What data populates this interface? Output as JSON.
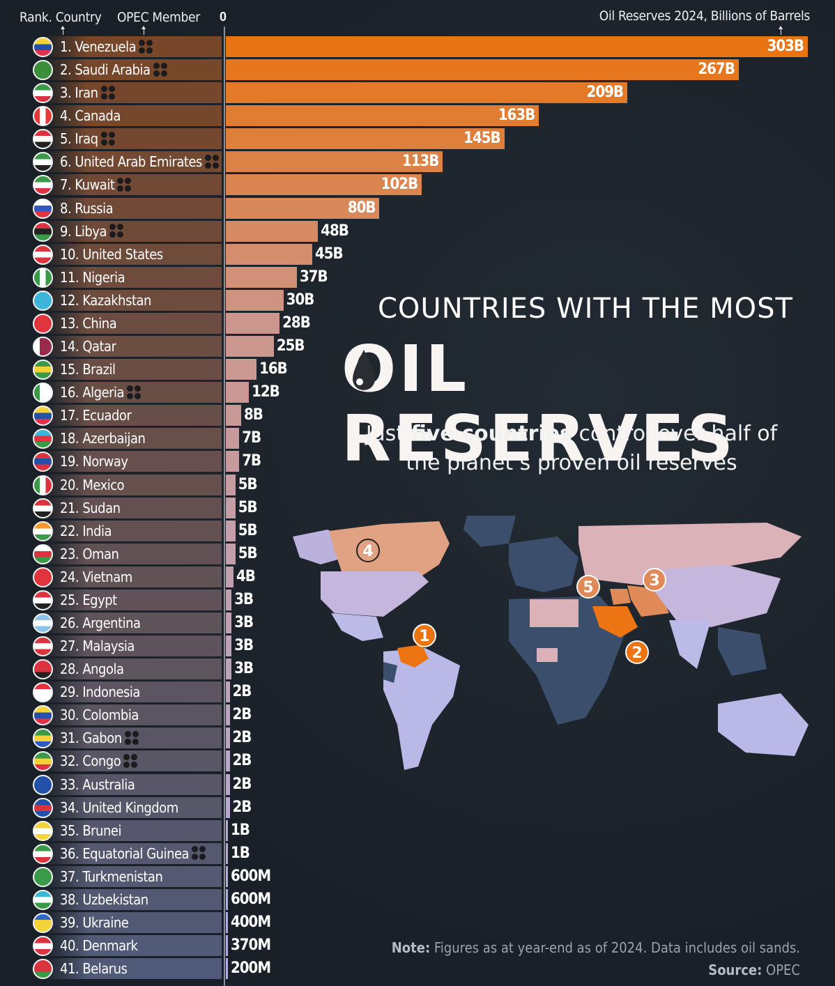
{
  "header": {
    "rank_country_label": "Rank. Country",
    "opec_label": "OPEC Member",
    "axis_zero": "0",
    "value_axis_label": "Oil Reserves 2024, Billions of Barrels"
  },
  "title": {
    "line1": "COUNTRIES WITH THE MOST",
    "line2": "OIL RESERVES",
    "subtitle_pre": "Just ",
    "subtitle_bold": "five countries",
    "subtitle_post": " control over half of the planet’s proven oil reserves"
  },
  "map": {
    "callouts": [
      {
        "rank": "1",
        "country": "Venezuela"
      },
      {
        "rank": "2",
        "country": "Saudi Arabia"
      },
      {
        "rank": "3",
        "country": "Iran"
      },
      {
        "rank": "4",
        "country": "Canada"
      },
      {
        "rank": "5",
        "country": "Iraq"
      }
    ],
    "colors": {
      "top": "#e8700f",
      "mid": "#e08a58",
      "high": "#d9b0b0",
      "low": "#b9b8e6",
      "none": "#3c4f6c",
      "ocean": "#1c232c"
    }
  },
  "footer": {
    "note_label": "Note:",
    "note_text": " Figures as at year-end as of 2024. Data includes oil sands.",
    "source_label": "Source:",
    "source_text": " OPEC"
  },
  "chart_data": {
    "type": "bar",
    "orientation": "horizontal",
    "title": "Countries with the Most Oil Reserves",
    "xlabel": "Oil Reserves 2024, Billions of Barrels",
    "ylabel": "Rank. Country",
    "categories": [
      "Venezuela",
      "Saudi Arabia",
      "Iran",
      "Canada",
      "Iraq",
      "United Arab Emirates",
      "Kuwait",
      "Russia",
      "Libya",
      "United States",
      "Nigeria",
      "Kazakhstan",
      "China",
      "Qatar",
      "Brazil",
      "Algeria",
      "Ecuador",
      "Azerbaijan",
      "Norway",
      "Mexico",
      "Sudan",
      "India",
      "Oman",
      "Vietnam",
      "Egypt",
      "Argentina",
      "Malaysia",
      "Angola",
      "Indonesia",
      "Colombia",
      "Gabon",
      "Congo",
      "Australia",
      "United Kingdom",
      "Brunei",
      "Equatorial Guinea",
      "Turkmenistan",
      "Uzbekistan",
      "Ukraine",
      "Denmark",
      "Belarus"
    ],
    "values": [
      303,
      267,
      209,
      163,
      145,
      113,
      102,
      80,
      48,
      45,
      37,
      30,
      28,
      25,
      16,
      12,
      8,
      7,
      7,
      5,
      5,
      5,
      5,
      4,
      3,
      3,
      3,
      3,
      2,
      2,
      2,
      2,
      2,
      2,
      1,
      1,
      0.6,
      0.6,
      0.4,
      0.37,
      0.2
    ],
    "value_labels": [
      "303B",
      "267B",
      "209B",
      "163B",
      "145B",
      "113B",
      "102B",
      "80B",
      "48B",
      "45B",
      "37B",
      "30B",
      "28B",
      "25B",
      "16B",
      "12B",
      "8B",
      "7B",
      "7B",
      "5B",
      "5B",
      "5B",
      "5B",
      "4B",
      "3B",
      "3B",
      "3B",
      "3B",
      "2B",
      "2B",
      "2B",
      "2B",
      "2B",
      "2B",
      "1B",
      "1B",
      "600M",
      "600M",
      "400M",
      "370M",
      "200M"
    ],
    "opec_member": [
      true,
      true,
      true,
      false,
      true,
      true,
      true,
      false,
      true,
      false,
      false,
      false,
      false,
      false,
      false,
      true,
      false,
      false,
      false,
      false,
      false,
      false,
      false,
      false,
      false,
      false,
      false,
      false,
      false,
      false,
      true,
      true,
      false,
      false,
      false,
      true,
      false,
      false,
      false,
      false,
      false
    ],
    "xlim": [
      0,
      303
    ],
    "grid": false,
    "legend": "none"
  },
  "rows": [
    {
      "label": "1. Venezuela",
      "value": "303B",
      "opec": true,
      "flag": [
        "#f4d23a",
        "#2350a8",
        "#e0304a"
      ]
    },
    {
      "label": "2. Saudi Arabia",
      "value": "267B",
      "opec": true,
      "flag": [
        "#3b8f3a",
        "#3b8f3a",
        "#3b8f3a"
      ]
    },
    {
      "label": "3. Iran",
      "value": "209B",
      "opec": true,
      "flag": [
        "#3a9a4a",
        "#ffffff",
        "#d9343f"
      ]
    },
    {
      "label": "4. Canada",
      "value": "163B",
      "opec": false,
      "flag": [
        "#e33a3a",
        "#ffffff",
        "#e33a3a"
      ],
      "vertical": true
    },
    {
      "label": "5. Iraq",
      "value": "145B",
      "opec": true,
      "flag": [
        "#d9343f",
        "#ffffff",
        "#222222"
      ]
    },
    {
      "label": "6. United Arab Emirates",
      "value": "113B",
      "opec": true,
      "flag": [
        "#3a9a4a",
        "#ffffff",
        "#222222"
      ]
    },
    {
      "label": "7. Kuwait",
      "value": "102B",
      "opec": true,
      "flag": [
        "#3a9a4a",
        "#ffffff",
        "#d9343f"
      ]
    },
    {
      "label": "8. Russia",
      "value": "80B",
      "opec": false,
      "flag": [
        "#ffffff",
        "#2e58c2",
        "#e0343f"
      ]
    },
    {
      "label": "9. Libya",
      "value": "48B",
      "opec": true,
      "flag": [
        "#d9343f",
        "#222222",
        "#3a9a4a"
      ]
    },
    {
      "label": "10. United States",
      "value": "45B",
      "opec": false,
      "flag": [
        "#d9343f",
        "#ffffff",
        "#d9343f"
      ]
    },
    {
      "label": "11. Nigeria",
      "value": "37B",
      "opec": false,
      "flag": [
        "#3a9a4a",
        "#ffffff",
        "#3a9a4a"
      ],
      "vertical": true
    },
    {
      "label": "12. Kazakhstan",
      "value": "30B",
      "opec": false,
      "flag": [
        "#3db5d9",
        "#3db5d9",
        "#3db5d9"
      ]
    },
    {
      "label": "13. China",
      "value": "28B",
      "opec": false,
      "flag": [
        "#e0343f",
        "#e0343f",
        "#e0343f"
      ]
    },
    {
      "label": "14. Qatar",
      "value": "25B",
      "opec": false,
      "flag": [
        "#ffffff",
        "#9a2a4e",
        "#9a2a4e"
      ],
      "vertical": true
    },
    {
      "label": "15. Brazil",
      "value": "16B",
      "opec": false,
      "flag": [
        "#3a9a4a",
        "#f4d23a",
        "#3a9a4a"
      ]
    },
    {
      "label": "16. Algeria",
      "value": "12B",
      "opec": true,
      "flag": [
        "#3a9a4a",
        "#ffffff",
        "#ffffff"
      ],
      "vertical": true
    },
    {
      "label": "17. Ecuador",
      "value": "8B",
      "opec": false,
      "flag": [
        "#f4d23a",
        "#2350a8",
        "#e0304a"
      ]
    },
    {
      "label": "18. Azerbaijan",
      "value": "7B",
      "opec": false,
      "flag": [
        "#3db5d9",
        "#e0343f",
        "#3a9a4a"
      ]
    },
    {
      "label": "19. Norway",
      "value": "7B",
      "opec": false,
      "flag": [
        "#d9343f",
        "#2350a8",
        "#d9343f"
      ]
    },
    {
      "label": "20. Mexico",
      "value": "5B",
      "opec": false,
      "flag": [
        "#3a9a4a",
        "#ffffff",
        "#d9343f"
      ],
      "vertical": true
    },
    {
      "label": "21. Sudan",
      "value": "5B",
      "opec": false,
      "flag": [
        "#d9343f",
        "#ffffff",
        "#222222"
      ]
    },
    {
      "label": "22. India",
      "value": "5B",
      "opec": false,
      "flag": [
        "#f29a2e",
        "#ffffff",
        "#3a9a4a"
      ]
    },
    {
      "label": "23. Oman",
      "value": "5B",
      "opec": false,
      "flag": [
        "#ffffff",
        "#d9343f",
        "#3a9a4a"
      ]
    },
    {
      "label": "24. Vietnam",
      "value": "4B",
      "opec": false,
      "flag": [
        "#e0343f",
        "#e0343f",
        "#e0343f"
      ]
    },
    {
      "label": "25. Egypt",
      "value": "3B",
      "opec": false,
      "flag": [
        "#d9343f",
        "#ffffff",
        "#222222"
      ]
    },
    {
      "label": "26. Argentina",
      "value": "3B",
      "opec": false,
      "flag": [
        "#8fc4ea",
        "#ffffff",
        "#8fc4ea"
      ]
    },
    {
      "label": "27. Malaysia",
      "value": "3B",
      "opec": false,
      "flag": [
        "#d9343f",
        "#ffffff",
        "#d9343f"
      ]
    },
    {
      "label": "28. Angola",
      "value": "3B",
      "opec": false,
      "flag": [
        "#d9343f",
        "#d9343f",
        "#222222"
      ]
    },
    {
      "label": "29. Indonesia",
      "value": "2B",
      "opec": false,
      "flag": [
        "#e0343f",
        "#ffffff",
        "#ffffff"
      ]
    },
    {
      "label": "30. Colombia",
      "value": "2B",
      "opec": false,
      "flag": [
        "#f4d23a",
        "#2350a8",
        "#e0304a"
      ]
    },
    {
      "label": "31. Gabon",
      "value": "2B",
      "opec": true,
      "flag": [
        "#3a9a4a",
        "#f4d23a",
        "#2e58c2"
      ]
    },
    {
      "label": "32. Congo",
      "value": "2B",
      "opec": true,
      "flag": [
        "#3a9a4a",
        "#f4d23a",
        "#d9343f"
      ]
    },
    {
      "label": "33. Australia",
      "value": "2B",
      "opec": false,
      "flag": [
        "#2350a8",
        "#2350a8",
        "#2350a8"
      ]
    },
    {
      "label": "34. United Kingdom",
      "value": "2B",
      "opec": false,
      "flag": [
        "#2350a8",
        "#d9343f",
        "#2350a8"
      ]
    },
    {
      "label": "35. Brunei",
      "value": "1B",
      "opec": false,
      "flag": [
        "#f4d23a",
        "#ffffff",
        "#f4d23a"
      ]
    },
    {
      "label": "36. Equatorial Guinea",
      "value": "1B",
      "opec": true,
      "flag": [
        "#3a9a4a",
        "#ffffff",
        "#d9343f"
      ]
    },
    {
      "label": "37. Turkmenistan",
      "value": "600M",
      "opec": false,
      "flag": [
        "#3a9a4a",
        "#3a9a4a",
        "#3a9a4a"
      ]
    },
    {
      "label": "38. Uzbekistan",
      "value": "600M",
      "opec": false,
      "flag": [
        "#3db5d9",
        "#ffffff",
        "#3a9a4a"
      ]
    },
    {
      "label": "39. Ukraine",
      "value": "400M",
      "opec": false,
      "flag": [
        "#2e68c8",
        "#f4d23a",
        "#f4d23a"
      ]
    },
    {
      "label": "40. Denmark",
      "value": "370M",
      "opec": false,
      "flag": [
        "#d9343f",
        "#ffffff",
        "#d9343f"
      ]
    },
    {
      "label": "41. Belarus",
      "value": "200M",
      "opec": false,
      "flag": [
        "#d9343f",
        "#d9343f",
        "#3a9a4a"
      ]
    }
  ]
}
